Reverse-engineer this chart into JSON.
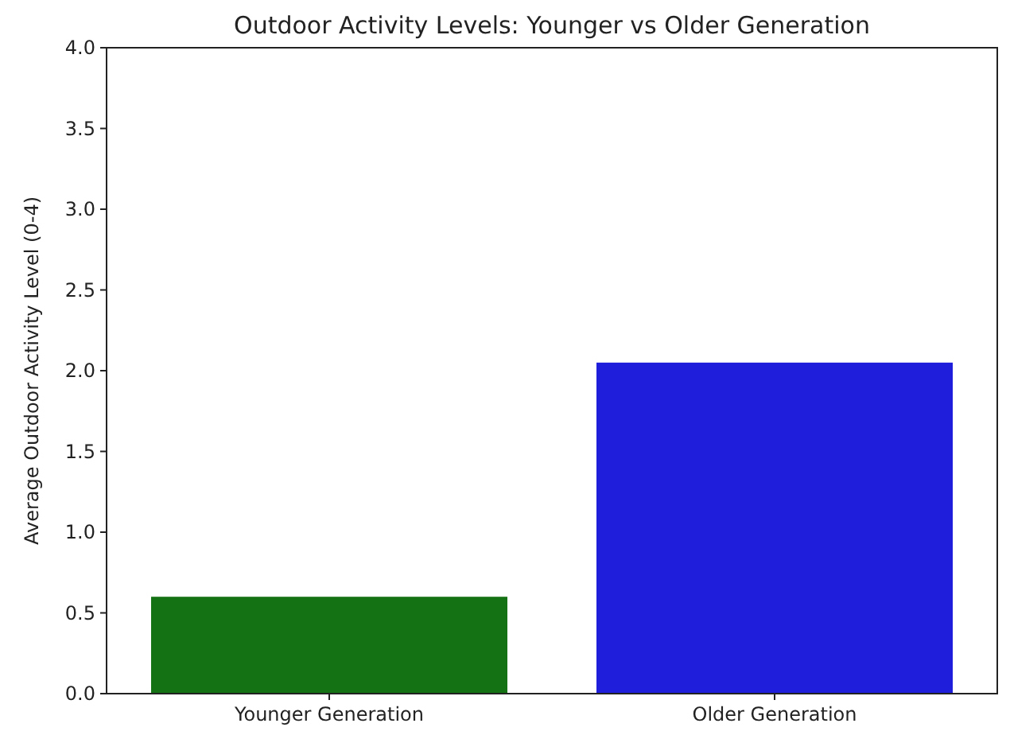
{
  "chart_data": {
    "type": "bar",
    "title": "Outdoor Activity Levels: Younger vs Older Generation",
    "ylabel": "Average Outdoor Activity Level (0-4)",
    "categories": [
      "Younger Generation",
      "Older Generation"
    ],
    "values": [
      0.6,
      2.05
    ],
    "colors": [
      "#147214",
      "#1f1fdb"
    ],
    "ylim": [
      0,
      4
    ],
    "yticks": [
      {
        "value": 0,
        "label": "0.0"
      },
      {
        "value": 0.5,
        "label": "0.5"
      },
      {
        "value": 1,
        "label": "1.0"
      },
      {
        "value": 1.5,
        "label": "1.5"
      },
      {
        "value": 2,
        "label": "2.0"
      },
      {
        "value": 2.5,
        "label": "2.5"
      },
      {
        "value": 3,
        "label": "3.0"
      },
      {
        "value": 3.5,
        "label": "3.5"
      },
      {
        "value": 4,
        "label": "4.0"
      }
    ]
  }
}
